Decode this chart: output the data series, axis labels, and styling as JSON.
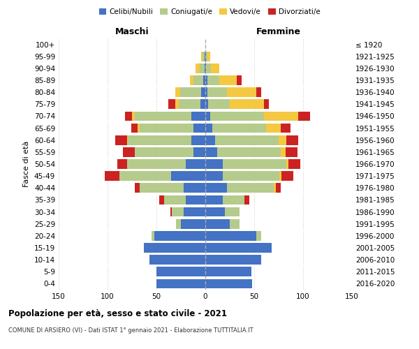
{
  "age_groups": [
    "0-4",
    "5-9",
    "10-14",
    "15-19",
    "20-24",
    "25-29",
    "30-34",
    "35-39",
    "40-44",
    "45-49",
    "50-54",
    "55-59",
    "60-64",
    "65-69",
    "70-74",
    "75-79",
    "80-84",
    "85-89",
    "90-94",
    "95-99",
    "100+"
  ],
  "birth_years": [
    "2016-2020",
    "2011-2015",
    "2006-2010",
    "2001-2005",
    "1996-2000",
    "1991-1995",
    "1986-1990",
    "1981-1985",
    "1976-1980",
    "1971-1975",
    "1966-1970",
    "1961-1965",
    "1956-1960",
    "1951-1955",
    "1946-1950",
    "1941-1945",
    "1936-1940",
    "1931-1935",
    "1926-1930",
    "1921-1925",
    "≤ 1920"
  ],
  "colors": {
    "celibi": "#4472c4",
    "coniugati": "#b5cb8b",
    "vedovi": "#f5c842",
    "divorziati": "#cc2222"
  },
  "maschi": {
    "celibi": [
      50,
      50,
      57,
      63,
      52,
      25,
      22,
      20,
      22,
      35,
      20,
      12,
      14,
      12,
      14,
      5,
      4,
      2,
      1,
      1,
      0
    ],
    "coniugati": [
      0,
      0,
      0,
      0,
      3,
      5,
      12,
      22,
      45,
      53,
      60,
      60,
      65,
      55,
      58,
      22,
      22,
      10,
      5,
      2,
      0
    ],
    "vedovi": [
      0,
      0,
      0,
      0,
      0,
      0,
      0,
      0,
      0,
      0,
      0,
      0,
      1,
      2,
      3,
      4,
      5,
      4,
      4,
      1,
      0
    ],
    "divorziati": [
      0,
      0,
      0,
      0,
      0,
      0,
      2,
      5,
      5,
      15,
      10,
      12,
      12,
      7,
      7,
      7,
      0,
      0,
      0,
      0,
      0
    ]
  },
  "femmine": {
    "celibi": [
      48,
      47,
      57,
      68,
      52,
      25,
      20,
      18,
      22,
      18,
      18,
      12,
      10,
      7,
      5,
      3,
      2,
      2,
      1,
      1,
      0
    ],
    "coniugati": [
      0,
      0,
      0,
      0,
      5,
      10,
      15,
      22,
      48,
      58,
      65,
      65,
      65,
      55,
      55,
      22,
      20,
      12,
      5,
      1,
      0
    ],
    "vedovi": [
      0,
      0,
      0,
      0,
      0,
      0,
      0,
      0,
      2,
      2,
      2,
      5,
      8,
      15,
      35,
      35,
      30,
      18,
      8,
      3,
      0
    ],
    "divorziati": [
      0,
      0,
      0,
      0,
      0,
      0,
      0,
      5,
      5,
      12,
      12,
      12,
      12,
      10,
      12,
      5,
      5,
      5,
      0,
      0,
      0
    ]
  },
  "title": "Popolazione per età, sesso e stato civile - 2021",
  "subtitle": "COMUNE DI ARSIERO (VI) - Dati ISTAT 1° gennaio 2021 - Elaborazione TUTTITALIA.IT",
  "xlabel_left": "Maschi",
  "xlabel_right": "Femmine",
  "ylabel_left": "Fasce di età",
  "xlim": 150,
  "legend_labels": [
    "Celibi/Nubili",
    "Coniugati/e",
    "Vedovi/e",
    "Divorziati/e"
  ],
  "bg_color": "#ffffff",
  "grid_color": "#cccccc",
  "bar_height": 0.8
}
